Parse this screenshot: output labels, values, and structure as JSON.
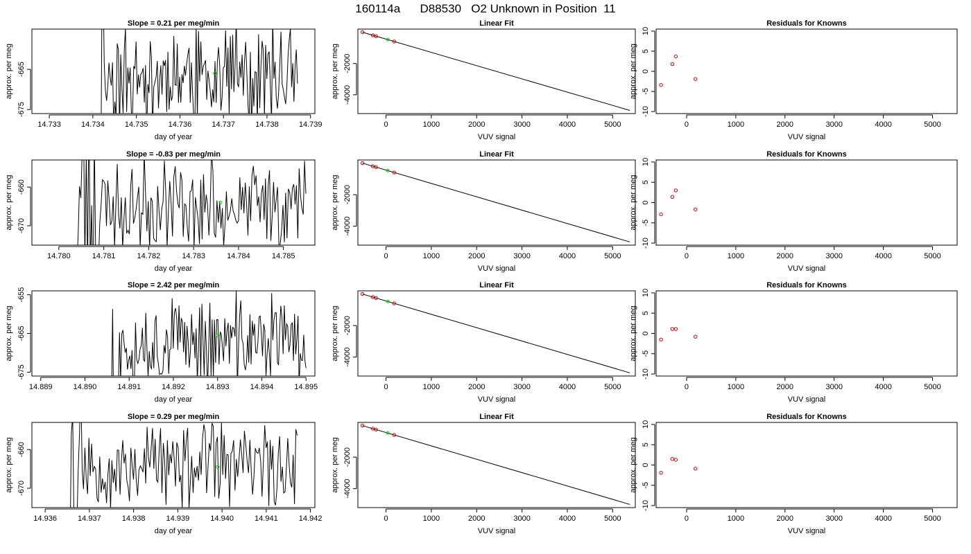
{
  "figure_title": "160114a      D88530   O2 Unknown in Position  11",
  "colors": {
    "trace": "#000000",
    "known_point": "#cc0000",
    "unknown_point": "#00cc00",
    "frame": "#000000"
  },
  "chart_data": [
    {
      "type": "line",
      "row": 1,
      "col": 1,
      "title": "Slope =  0.21  per meg/min",
      "xlabel": "day of year",
      "ylabel": "approx. per meg",
      "xlim": [
        14.7326,
        14.7391
      ],
      "ylim": [
        -676,
        -655
      ],
      "xticks": [
        14.733,
        14.734,
        14.735,
        14.736,
        14.737,
        14.738,
        14.739
      ],
      "xtick_labels": [
        "14.733",
        "14.734",
        "14.735",
        "14.736",
        "14.737",
        "14.738",
        "14.739"
      ],
      "yticks": [
        -665,
        -675
      ],
      "ytick_labels": [
        "-665",
        "-675"
      ],
      "series": [
        {
          "x_start": 14.7341,
          "x_end": 14.7387,
          "center": -666.5,
          "amplitude": 16,
          "start_fraction": 0.03,
          "seed": 11
        }
      ],
      "unknown_point": {
        "x": 14.7368,
        "y": -666
      }
    },
    {
      "type": "scatter",
      "row": 1,
      "col": 2,
      "title": "Linear Fit",
      "xlabel": "VUV signal",
      "ylabel": "approx. per meg",
      "xlim": [
        -620,
        5500
      ],
      "ylim": [
        -5200,
        200
      ],
      "xticks": [
        0,
        1000,
        2000,
        3000,
        4000,
        5000
      ],
      "xtick_labels": [
        "0",
        "1000",
        "2000",
        "3000",
        "4000",
        "5000"
      ],
      "yticks": [
        -2000,
        -4000
      ],
      "ytick_labels": [
        "-2000",
        "-4000"
      ],
      "fit_line": {
        "x": [
          -520,
          5380
        ],
        "y": [
          0,
          -5000
        ]
      },
      "knowns": [
        {
          "x": -520,
          "y": 0
        },
        {
          "x": -290,
          "y": -195
        },
        {
          "x": -220,
          "y": -255
        },
        {
          "x": 180,
          "y": -595
        }
      ],
      "unknown": {
        "x": 40,
        "y": -470
      }
    },
    {
      "type": "scatter",
      "row": 1,
      "col": 3,
      "title": "Residuals for Knowns",
      "xlabel": "VUV signal",
      "ylabel": "approx. per meg",
      "xlim": [
        -620,
        5500
      ],
      "ylim": [
        -10.5,
        10.5
      ],
      "xticks": [
        0,
        1000,
        2000,
        3000,
        4000,
        5000
      ],
      "xtick_labels": [
        "0",
        "1000",
        "2000",
        "3000",
        "4000",
        "5000"
      ],
      "yticks": [
        10,
        5,
        0,
        -5,
        -10
      ],
      "ytick_labels": [
        "10",
        "5",
        "0",
        "-5",
        "-10"
      ],
      "points": [
        {
          "x": -520,
          "y": -3.4
        },
        {
          "x": -290,
          "y": 1.8
        },
        {
          "x": -220,
          "y": 3.7
        },
        {
          "x": 180,
          "y": -1.9
        }
      ]
    },
    {
      "type": "line",
      "row": 2,
      "col": 1,
      "title": "Slope =  -0.83  per meg/min",
      "xlabel": "day of year",
      "ylabel": "approx. per meg",
      "xlim": [
        14.7794,
        14.7857
      ],
      "ylim": [
        -675,
        -653
      ],
      "xticks": [
        14.78,
        14.781,
        14.782,
        14.783,
        14.784,
        14.785
      ],
      "xtick_labels": [
        "14.780",
        "14.781",
        "14.782",
        "14.783",
        "14.784",
        "14.785"
      ],
      "yticks": [
        -660,
        -670
      ],
      "ytick_labels": [
        "-660",
        "-670"
      ],
      "series": [
        {
          "x_start": 14.7804,
          "x_end": 14.7855,
          "center": -664,
          "amplitude": 14,
          "start_fraction": 0.1,
          "seed": 23
        }
      ],
      "unknown_point": {
        "x": 14.7836,
        "y": -664
      }
    },
    {
      "type": "scatter",
      "row": 2,
      "col": 2,
      "title": "Linear Fit",
      "xlabel": "VUV signal",
      "ylabel": "approx. per meg",
      "xlim": [
        -620,
        5500
      ],
      "ylim": [
        -5200,
        200
      ],
      "xticks": [
        0,
        1000,
        2000,
        3000,
        4000,
        5000
      ],
      "xtick_labels": [
        "0",
        "1000",
        "2000",
        "3000",
        "4000",
        "5000"
      ],
      "yticks": [
        -2000,
        -4000
      ],
      "ytick_labels": [
        "-2000",
        "-4000"
      ],
      "fit_line": {
        "x": [
          -520,
          5380
        ],
        "y": [
          0,
          -5000
        ]
      },
      "knowns": [
        {
          "x": -520,
          "y": 0
        },
        {
          "x": -290,
          "y": -195
        },
        {
          "x": -220,
          "y": -255
        },
        {
          "x": 180,
          "y": -595
        }
      ],
      "unknown": {
        "x": 40,
        "y": -470
      }
    },
    {
      "type": "scatter",
      "row": 2,
      "col": 3,
      "title": "Residuals for Knowns",
      "xlabel": "VUV signal",
      "ylabel": "approx. per meg",
      "xlim": [
        -620,
        5500
      ],
      "ylim": [
        -10.5,
        10.5
      ],
      "xticks": [
        0,
        1000,
        2000,
        3000,
        4000,
        5000
      ],
      "xtick_labels": [
        "0",
        "1000",
        "2000",
        "3000",
        "4000",
        "5000"
      ],
      "yticks": [
        10,
        5,
        0,
        -5,
        -10
      ],
      "ytick_labels": [
        "10",
        "5",
        "0",
        "-5",
        "-10"
      ],
      "points": [
        {
          "x": -520,
          "y": -2.9
        },
        {
          "x": -290,
          "y": 1.4
        },
        {
          "x": -220,
          "y": 3.0
        },
        {
          "x": 180,
          "y": -1.7
        }
      ]
    },
    {
      "type": "line",
      "row": 3,
      "col": 1,
      "title": "Slope =  2.42  per meg/min",
      "xlabel": "day of year",
      "ylabel": "approx. per meg",
      "xlim": [
        14.8888,
        14.8952
      ],
      "ylim": [
        -676,
        -654
      ],
      "xticks": [
        14.889,
        14.89,
        14.891,
        14.892,
        14.893,
        14.894,
        14.895
      ],
      "xtick_labels": [
        "14.889",
        "14.890",
        "14.891",
        "14.892",
        "14.893",
        "14.894",
        "14.895"
      ],
      "yticks": [
        -655,
        -665,
        -675
      ],
      "ytick_labels": [
        "-655",
        "-665",
        "-675"
      ],
      "series": [
        {
          "x_start": 14.8906,
          "x_end": 14.895,
          "center": -667,
          "amplitude": 14,
          "start_fraction": 0.05,
          "seed": 37
        }
      ],
      "unknown_point": {
        "x": 14.893,
        "y": -665.5
      }
    },
    {
      "type": "scatter",
      "row": 3,
      "col": 2,
      "title": "Linear Fit",
      "xlabel": "VUV signal",
      "ylabel": "approx. per meg",
      "xlim": [
        -620,
        5500
      ],
      "ylim": [
        -5200,
        200
      ],
      "xticks": [
        0,
        1000,
        2000,
        3000,
        4000,
        5000
      ],
      "xtick_labels": [
        "0",
        "1000",
        "2000",
        "3000",
        "4000",
        "5000"
      ],
      "yticks": [
        -2000,
        -4000
      ],
      "ytick_labels": [
        "-2000",
        "-4000"
      ],
      "fit_line": {
        "x": [
          -520,
          5380
        ],
        "y": [
          0,
          -5000
        ]
      },
      "knowns": [
        {
          "x": -520,
          "y": 0
        },
        {
          "x": -290,
          "y": -195
        },
        {
          "x": -220,
          "y": -255
        },
        {
          "x": 180,
          "y": -595
        }
      ],
      "unknown": {
        "x": 40,
        "y": -470
      }
    },
    {
      "type": "scatter",
      "row": 3,
      "col": 3,
      "title": "Residuals for Knowns",
      "xlabel": "VUV signal",
      "ylabel": "approx. per meg",
      "xlim": [
        -620,
        5500
      ],
      "ylim": [
        -10.5,
        10.5
      ],
      "xticks": [
        0,
        1000,
        2000,
        3000,
        4000,
        5000
      ],
      "xtick_labels": [
        "0",
        "1000",
        "2000",
        "3000",
        "4000",
        "5000"
      ],
      "yticks": [
        10,
        5,
        0,
        -5,
        -10
      ],
      "ytick_labels": [
        "10",
        "5",
        "0",
        "-5",
        "-10"
      ],
      "points": [
        {
          "x": -520,
          "y": -1.5
        },
        {
          "x": -290,
          "y": 1.1
        },
        {
          "x": -220,
          "y": 1.1
        },
        {
          "x": 180,
          "y": -0.8
        }
      ]
    },
    {
      "type": "line",
      "row": 4,
      "col": 1,
      "title": "Slope =  0.29  per meg/min",
      "xlabel": "day of year",
      "ylabel": "approx. per meg",
      "xlim": [
        14.9357,
        14.9421
      ],
      "ylim": [
        -675,
        -653
      ],
      "xticks": [
        14.936,
        14.937,
        14.938,
        14.939,
        14.94,
        14.941,
        14.942
      ],
      "xtick_labels": [
        "14.936",
        "14.937",
        "14.938",
        "14.939",
        "14.940",
        "14.941",
        "14.942"
      ],
      "yticks": [
        -660,
        -670
      ],
      "ytick_labels": [
        "-660",
        "-670"
      ],
      "series": [
        {
          "x_start": 14.9365,
          "x_end": 14.9417,
          "center": -664,
          "amplitude": 14,
          "start_fraction": 0.06,
          "seed": 53
        }
      ],
      "unknown_point": {
        "x": 14.9399,
        "y": -664.5
      }
    },
    {
      "type": "scatter",
      "row": 4,
      "col": 2,
      "title": "Linear Fit",
      "xlabel": "VUV signal",
      "ylabel": "approx. per meg",
      "xlim": [
        -620,
        5500
      ],
      "ylim": [
        -5200,
        200
      ],
      "xticks": [
        0,
        1000,
        2000,
        3000,
        4000,
        5000
      ],
      "xtick_labels": [
        "0",
        "1000",
        "2000",
        "3000",
        "4000",
        "5000"
      ],
      "yticks": [
        -2000,
        -4000
      ],
      "ytick_labels": [
        "-2000",
        "-4000"
      ],
      "fit_line": {
        "x": [
          -520,
          5380
        ],
        "y": [
          0,
          -5000
        ]
      },
      "knowns": [
        {
          "x": -520,
          "y": 0
        },
        {
          "x": -290,
          "y": -195
        },
        {
          "x": -220,
          "y": -255
        },
        {
          "x": 180,
          "y": -595
        }
      ],
      "unknown": {
        "x": 40,
        "y": -470
      }
    },
    {
      "type": "scatter",
      "row": 4,
      "col": 3,
      "title": "Residuals for Knowns",
      "xlabel": "VUV signal",
      "ylabel": "approx. per meg",
      "xlim": [
        -620,
        5500
      ],
      "ylim": [
        -10.5,
        10.5
      ],
      "xticks": [
        0,
        1000,
        2000,
        3000,
        4000,
        5000
      ],
      "xtick_labels": [
        "0",
        "1000",
        "2000",
        "3000",
        "4000",
        "5000"
      ],
      "yticks": [
        10,
        5,
        0,
        -5,
        -10
      ],
      "ytick_labels": [
        "10",
        "5",
        "0",
        "-5",
        "-10"
      ],
      "points": [
        {
          "x": -520,
          "y": -1.9
        },
        {
          "x": -290,
          "y": 1.5
        },
        {
          "x": -220,
          "y": 1.3
        },
        {
          "x": 180,
          "y": -0.9
        }
      ]
    }
  ]
}
